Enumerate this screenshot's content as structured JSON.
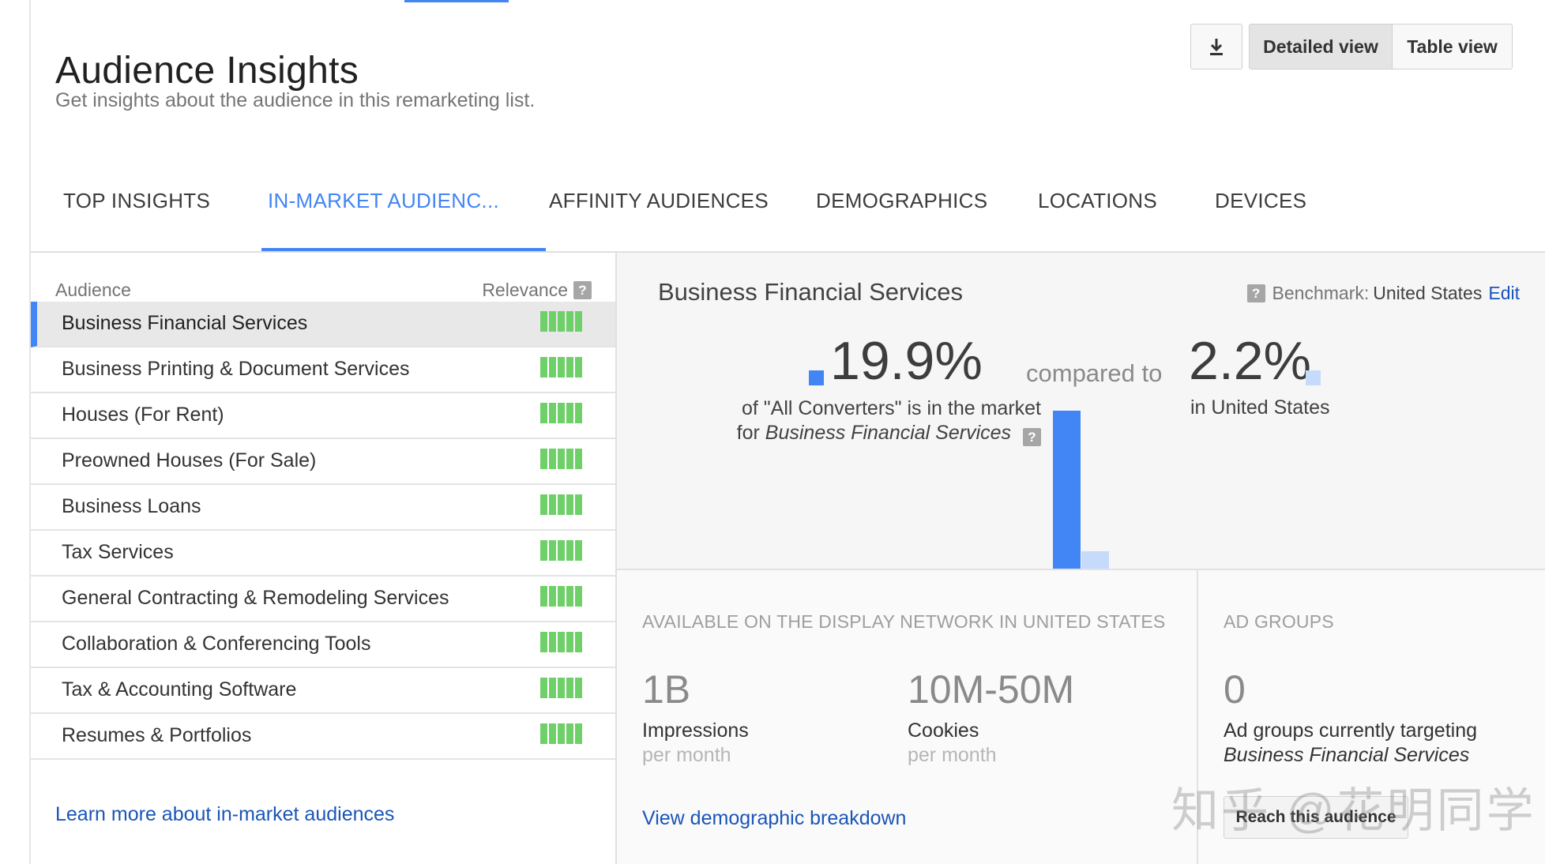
{
  "header": {
    "title": "Audience Insights",
    "subtitle": "Get insights about the audience in this remarketing list."
  },
  "toolbar": {
    "download_icon": "download-icon",
    "detailed_view_label": "Detailed view",
    "table_view_label": "Table view"
  },
  "tabs": [
    {
      "label": "TOP INSIGHTS"
    },
    {
      "label": "IN-MARKET AUDIENC..."
    },
    {
      "label": "AFFINITY AUDIENCES"
    },
    {
      "label": "DEMOGRAPHICS"
    },
    {
      "label": "LOCATIONS"
    },
    {
      "label": "DEVICES"
    }
  ],
  "active_tab": 1,
  "audience_list": {
    "header_audience": "Audience",
    "header_relevance": "Relevance",
    "help_glyph": "?",
    "items": [
      {
        "label": "Business Financial Services",
        "relevance": 5
      },
      {
        "label": "Business Printing & Document Services",
        "relevance": 5
      },
      {
        "label": "Houses (For Rent)",
        "relevance": 5
      },
      {
        "label": "Preowned Houses (For Sale)",
        "relevance": 5
      },
      {
        "label": "Business Loans",
        "relevance": 5
      },
      {
        "label": "Tax Services",
        "relevance": 5
      },
      {
        "label": "General Contracting & Remodeling Services",
        "relevance": 5
      },
      {
        "label": "Collaboration & Conferencing Tools",
        "relevance": 5
      },
      {
        "label": "Tax & Accounting Software",
        "relevance": 5
      },
      {
        "label": "Resumes & Portfolios",
        "relevance": 5
      }
    ],
    "selected_index": 0,
    "learn_more": "Learn more about in-market audiences"
  },
  "detail": {
    "title": "Business Financial Services",
    "benchmark_label": "Benchmark:",
    "benchmark_value": "United States",
    "benchmark_edit": "Edit",
    "stat_primary": "19.9%",
    "stat_primary_desc_line1": "of \"All Converters\" is in the market",
    "stat_primary_desc_prefix": "for",
    "stat_primary_desc_segment": "Business Financial Services",
    "compared_to": "compared to",
    "stat_benchmark": "2.2%",
    "stat_benchmark_desc": "in United States",
    "colors": {
      "primary": "#4285f4",
      "benchmark": "#c6dafc"
    }
  },
  "chart_data": {
    "type": "bar",
    "categories": [
      "All Converters",
      "United States"
    ],
    "values": [
      19.9,
      2.2
    ],
    "ylim": [
      0,
      19.9
    ]
  },
  "reach": {
    "heading": "AVAILABLE ON THE DISPLAY NETWORK IN UNITED STATES",
    "impressions_value": "1B",
    "impressions_label": "Impressions",
    "impressions_sub": "per month",
    "cookies_value": "10M-50M",
    "cookies_label": "Cookies",
    "cookies_sub": "per month",
    "view_breakdown": "View demographic breakdown"
  },
  "ad_groups": {
    "heading": "AD GROUPS",
    "value": "0",
    "label": "Ad groups currently targeting",
    "segment": "Business Financial Services",
    "button": "Reach this audience"
  },
  "watermark": "知乎 @花明同学"
}
